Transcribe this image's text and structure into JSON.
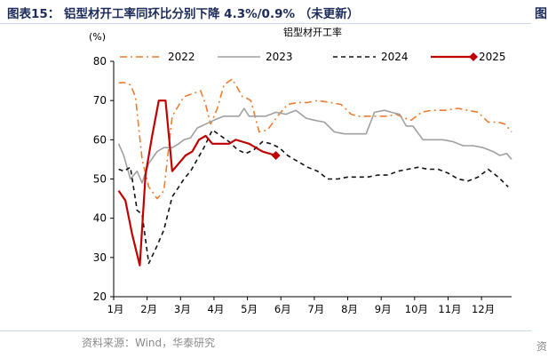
{
  "caption": "图表15： 铝型材开工率同环比分别下降 4.3%/0.9% （未更新）",
  "source": "资料来源：Wind，华泰研究",
  "edge_glyphs": [
    "图",
    "资"
  ],
  "chart_data": {
    "type": "line",
    "title": "铝型材开工率",
    "ylabel": "(%)",
    "xlabel": "",
    "ylim": [
      20,
      80
    ],
    "yticks": [
      20,
      30,
      40,
      50,
      60,
      70,
      80
    ],
    "xlim": [
      1,
      12.9
    ],
    "x_categories": [
      "1月",
      "2月",
      "3月",
      "4月",
      "5月",
      "6月",
      "7月",
      "8月",
      "9月",
      "10月",
      "11月",
      "12月"
    ],
    "legend_position": "top",
    "grid": false,
    "series": [
      {
        "name": "2022",
        "color": "#ed7d31",
        "dash": "dashdot",
        "x": [
          1.15,
          1.3,
          1.5,
          1.65,
          1.85,
          2.05,
          2.3,
          2.5,
          2.75,
          3.1,
          3.45,
          3.6,
          3.75,
          3.9,
          4.1,
          4.3,
          4.55,
          4.85,
          5.0,
          5.1,
          5.35,
          5.6,
          5.9,
          6.2,
          6.5,
          6.8,
          7.1,
          7.5,
          7.8,
          8.1,
          8.3,
          8.6,
          8.9,
          9.2,
          9.45,
          9.7,
          9.9,
          10.2,
          10.5,
          10.9,
          11.3,
          11.6,
          11.9,
          12.2,
          12.5,
          12.7,
          12.9
        ],
        "y": [
          74.5,
          74.6,
          74.0,
          71.0,
          55.0,
          48.0,
          45.0,
          47.0,
          66.0,
          71.0,
          72.0,
          72.5,
          69.0,
          64.0,
          68.0,
          74.0,
          75.5,
          71.0,
          70.5,
          70.0,
          62.0,
          62.5,
          66.0,
          69.0,
          69.5,
          69.5,
          70.0,
          69.5,
          69.0,
          66.5,
          66.0,
          66.0,
          66.0,
          66.0,
          66.5,
          65.5,
          65.0,
          67.0,
          67.5,
          67.5,
          68.0,
          67.5,
          67.0,
          64.5,
          64.5,
          64.0,
          62.0
        ]
      },
      {
        "name": "2023",
        "color": "#a0a0a0",
        "dash": "solid",
        "x": [
          1.15,
          1.3,
          1.5,
          1.7,
          1.85,
          2.05,
          2.3,
          2.5,
          2.75,
          2.95,
          3.1,
          3.3,
          3.5,
          3.75,
          4.0,
          4.3,
          4.6,
          4.75,
          4.9,
          5.05,
          5.35,
          5.55,
          5.85,
          6.15,
          6.45,
          6.75,
          7.0,
          7.3,
          7.6,
          7.9,
          8.15,
          8.35,
          8.55,
          8.8,
          9.1,
          9.3,
          9.55,
          9.75,
          9.95,
          10.25,
          10.55,
          10.85,
          11.15,
          11.45,
          11.75,
          12.05,
          12.35,
          12.55,
          12.75,
          12.9
        ],
        "y": [
          59.0,
          56.0,
          50.0,
          52.0,
          49.0,
          54.0,
          57.0,
          58.0,
          58.0,
          59.0,
          60.0,
          60.5,
          63.0,
          64.0,
          65.0,
          66.0,
          66.0,
          66.0,
          68.0,
          66.0,
          66.0,
          66.0,
          67.0,
          66.5,
          67.5,
          65.5,
          65.0,
          64.5,
          62.0,
          61.5,
          61.5,
          61.5,
          61.5,
          67.0,
          67.5,
          67.0,
          66.5,
          63.5,
          63.5,
          60.0,
          60.0,
          60.0,
          59.5,
          58.5,
          58.5,
          58.0,
          57.0,
          56.0,
          56.5,
          55.0
        ]
      },
      {
        "name": "2024",
        "color": "#111111",
        "dash": "dash",
        "x": [
          1.15,
          1.3,
          1.5,
          1.7,
          1.85,
          2.05,
          2.3,
          2.5,
          2.75,
          2.95,
          3.1,
          3.3,
          3.5,
          3.7,
          3.95,
          4.2,
          4.45,
          4.7,
          4.95,
          5.2,
          5.45,
          5.7,
          5.95,
          6.2,
          6.5,
          6.8,
          7.1,
          7.4,
          7.7,
          8.0,
          8.3,
          8.6,
          8.9,
          9.2,
          9.5,
          9.8,
          10.1,
          10.4,
          10.7,
          11.0,
          11.3,
          11.6,
          11.9,
          12.2,
          12.5,
          12.8
        ],
        "y": [
          52.5,
          52.0,
          53.0,
          42.0,
          41.0,
          28.5,
          33.0,
          37.0,
          45.5,
          48.0,
          50.0,
          52.0,
          55.0,
          58.0,
          62.5,
          61.0,
          59.5,
          57.5,
          56.5,
          57.5,
          59.5,
          59.0,
          58.0,
          56.0,
          54.5,
          53.0,
          52.0,
          50.0,
          50.0,
          50.5,
          50.5,
          50.5,
          51.0,
          51.0,
          52.0,
          52.5,
          53.0,
          52.5,
          52.5,
          51.5,
          50.0,
          49.5,
          50.5,
          52.5,
          50.5,
          48.0
        ]
      },
      {
        "name": "2025",
        "color": "#c00000",
        "dash": "solid",
        "x": [
          1.15,
          1.35,
          1.55,
          1.78,
          1.95,
          2.15,
          2.35,
          2.55,
          2.75,
          2.95,
          3.15,
          3.35,
          3.55,
          3.75,
          3.95,
          4.2,
          4.45,
          4.65,
          4.85,
          5.05,
          5.25,
          5.45,
          5.65,
          5.85
        ],
        "y": [
          47.0,
          44.5,
          36.0,
          28.0,
          51.0,
          61.0,
          70.0,
          70.0,
          52.0,
          54.0,
          56.0,
          57.0,
          60.0,
          61.0,
          59.0,
          59.0,
          59.0,
          60.0,
          59.5,
          59.0,
          58.0,
          57.0,
          56.5,
          56.0
        ],
        "marker": "diamond-last"
      }
    ]
  }
}
